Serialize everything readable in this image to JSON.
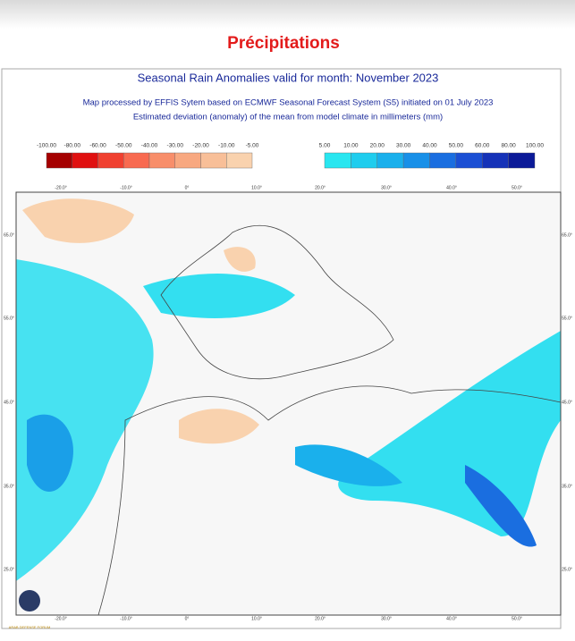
{
  "header": {
    "title": "Précipitations"
  },
  "map": {
    "title": "Seasonal Rain Anomalies valid for month: November 2023",
    "subtitle": "Map processed by EFFIS Sytem based on ECMWF Seasonal Forecast System (S5) initiated on 01 July 2023",
    "note": "Estimated deviation (anomaly) of the mean from model climate in millimeters (mm)",
    "legend_negative": {
      "labels": [
        "-100.00",
        "-80.00",
        "-60.00",
        "-50.00",
        "-40.00",
        "-30.00",
        "-20.00",
        "-10.00",
        "-5.00"
      ],
      "colors": [
        "#a50000",
        "#e01010",
        "#f04030",
        "#f86a50",
        "#f88e6a",
        "#f8a880",
        "#f8bf98",
        "#f9d2ae"
      ]
    },
    "legend_positive": {
      "labels": [
        "5.00",
        "10.00",
        "20.00",
        "30.00",
        "40.00",
        "50.00",
        "60.00",
        "80.00",
        "100.00"
      ],
      "colors": [
        "#29e6f0",
        "#1fcdee",
        "#1ab0ec",
        "#1890e8",
        "#1a6ee0",
        "#1b4fd4",
        "#1532b8",
        "#0b1a98"
      ]
    },
    "lon_labels": [
      "-20.0°",
      "-10.0°",
      "0°",
      "10.0°",
      "20.0°",
      "30.0°",
      "40.0°",
      "50.0°"
    ],
    "lat_labels": [
      "65.0°",
      "55.0°",
      "45.0°",
      "35.0°",
      "25.0°"
    ]
  },
  "watermark": {
    "text": "ARAB DEFENSE FORUM"
  }
}
